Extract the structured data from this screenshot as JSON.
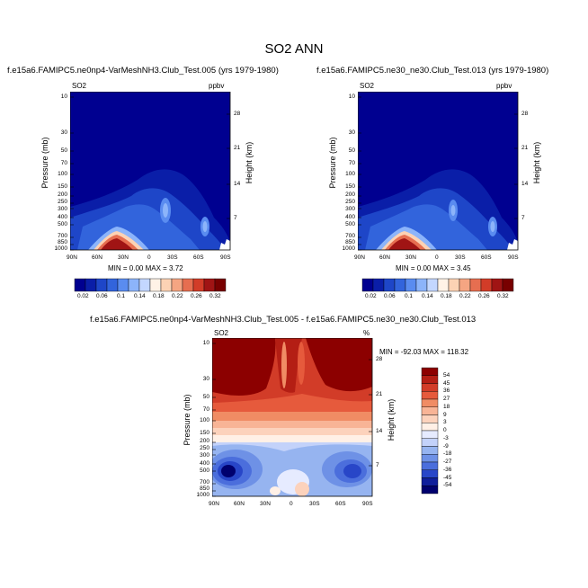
{
  "main_title": "SO2 ANN",
  "panels": [
    {
      "title": "f.e15a6.FAMIPC5.ne0np4-VarMeshNH3.Club_Test.005 (yrs 1979-1980)",
      "var_label": "SO2",
      "units": "ppbv",
      "min_max": "MIN =   0.00  MAX =   3.72",
      "colorbar_labels": [
        "0.02",
        "0.06",
        "0.1",
        "0.14",
        "0.18",
        "0.22",
        "0.26",
        "0.32"
      ]
    },
    {
      "title": "f.e15a6.FAMIPC5.ne30_ne30.Club_Test.013 (yrs 1979-1980)",
      "var_label": "SO2",
      "units": "ppbv",
      "min_max": "MIN =   0.00  MAX =   3.45",
      "colorbar_labels": [
        "0.02",
        "0.06",
        "0.1",
        "0.14",
        "0.18",
        "0.22",
        "0.26",
        "0.32"
      ]
    },
    {
      "title": "f.e15a6.FAMIPC5.ne0np4-VarMeshNH3.Club_Test.005 - f.e15a6.FAMIPC5.ne30_ne30.Club_Test.013",
      "var_label": "SO2",
      "units": "%",
      "min_max": "MIN = -92.03   MAX = 118.32",
      "colorbar_labels": [
        "54",
        "45",
        "36",
        "27",
        "18",
        "9",
        "3",
        "0",
        "-3",
        "-9",
        "-18",
        "-27",
        "-36",
        "-45",
        "-54"
      ]
    }
  ],
  "axes": {
    "ylabel": "Pressure (mb)",
    "ylabel_right": "Height (km)",
    "x_ticks": [
      "90N",
      "60N",
      "30N",
      "0",
      "30S",
      "60S",
      "90S"
    ],
    "y_ticks": [
      "10",
      "30",
      "50",
      "70",
      "100",
      "150",
      "200",
      "250",
      "300",
      "400",
      "500",
      "700",
      "850",
      "1000"
    ],
    "height_ticks": [
      "28",
      "21",
      "14",
      "7"
    ]
  },
  "colors": {
    "seq_scale": [
      "#000090",
      "#0a1ea8",
      "#1e46c8",
      "#3264dc",
      "#5a8cf0",
      "#8cb4fa",
      "#c3d7ff",
      "#fff2e6",
      "#fcd2b4",
      "#f5a582",
      "#e66e50",
      "#d23c28",
      "#a01414",
      "#780000"
    ],
    "diff_scale": [
      "#8c0000",
      "#b41e14",
      "#d23c28",
      "#e65a3c",
      "#f08c64",
      "#f8b496",
      "#fcd2bc",
      "#fff0e6",
      "#e6ebff",
      "#c3d2fa",
      "#96b4f0",
      "#6e91e6",
      "#4b6edc",
      "#2846c8",
      "#0f1e9b",
      "#00006e"
    ]
  },
  "chart_data": [
    {
      "type": "heatmap",
      "title": "f.e15a6.FAMIPC5.ne0np4-VarMeshNH3.Club_Test.005 (yrs 1979-1980)",
      "x": [
        "90N",
        "60N",
        "30N",
        "0",
        "30S",
        "60S",
        "90S"
      ],
      "y": [
        10,
        30,
        50,
        70,
        100,
        150,
        200,
        250,
        300,
        400,
        500,
        700,
        850,
        1000
      ],
      "ylabel": "Pressure (mb)",
      "units": "ppbv",
      "min": 0.0,
      "max": 3.72,
      "contour_levels": [
        0.02,
        0.04,
        0.06,
        0.08,
        0.1,
        0.12,
        0.14,
        0.16,
        0.18,
        0.2,
        0.22,
        0.24,
        0.26,
        0.28,
        0.32
      ]
    },
    {
      "type": "heatmap",
      "title": "f.e15a6.FAMIPC5.ne30_ne30.Club_Test.013 (yrs 1979-1980)",
      "x": [
        "90N",
        "60N",
        "30N",
        "0",
        "30S",
        "60S",
        "90S"
      ],
      "y": [
        10,
        30,
        50,
        70,
        100,
        150,
        200,
        250,
        300,
        400,
        500,
        700,
        850,
        1000
      ],
      "ylabel": "Pressure (mb)",
      "units": "ppbv",
      "min": 0.0,
      "max": 3.45,
      "contour_levels": [
        0.02,
        0.04,
        0.06,
        0.08,
        0.1,
        0.12,
        0.14,
        0.16,
        0.18,
        0.2,
        0.22,
        0.24,
        0.26,
        0.28,
        0.32
      ]
    },
    {
      "type": "heatmap",
      "title": "f.e15a6.FAMIPC5.ne0np4-VarMeshNH3.Club_Test.005 - f.e15a6.FAMIPC5.ne30_ne30.Club_Test.013",
      "x": [
        "90N",
        "60N",
        "30N",
        "0",
        "30S",
        "60S",
        "90S"
      ],
      "y": [
        10,
        30,
        50,
        70,
        100,
        150,
        200,
        250,
        300,
        400,
        500,
        700,
        850,
        1000
      ],
      "ylabel": "Pressure (mb)",
      "units": "%",
      "min": -92.03,
      "max": 118.32,
      "contour_levels": [
        -54,
        -45,
        -36,
        -27,
        -18,
        -9,
        -3,
        0,
        3,
        9,
        18,
        27,
        36,
        45,
        54
      ]
    }
  ]
}
